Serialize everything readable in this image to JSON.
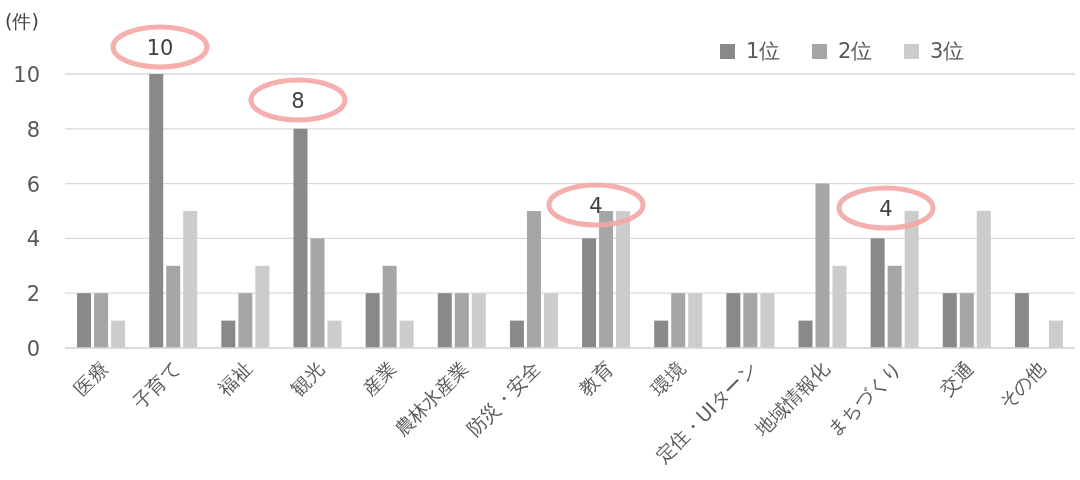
{
  "chart_data": {
    "type": "bar",
    "ylabel": "(件)",
    "categories": [
      "医療",
      "子育て",
      "福祉",
      "観光",
      "産業",
      "農林水産業",
      "防災・安全",
      "教育",
      "環境",
      "定住・UIターン",
      "地域情報化",
      "まちづくり",
      "交通",
      "その他"
    ],
    "series": [
      {
        "name": "1位",
        "color": "#898989",
        "values": [
          2,
          10,
          1,
          8,
          2,
          2,
          1,
          4,
          1,
          2,
          1,
          4,
          2,
          2
        ]
      },
      {
        "name": "2位",
        "color": "#a6a6a6",
        "values": [
          2,
          3,
          2,
          4,
          3,
          2,
          5,
          5,
          2,
          2,
          6,
          3,
          2,
          0
        ]
      },
      {
        "name": "3位",
        "color": "#cccccc",
        "values": [
          1,
          5,
          3,
          1,
          1,
          2,
          2,
          5,
          2,
          2,
          3,
          5,
          5,
          1
        ]
      }
    ],
    "ylim": [
      0,
      10
    ],
    "yticks": [
      0,
      2,
      4,
      6,
      8,
      10
    ],
    "grid": "y",
    "legend": "top right",
    "annotations": [
      "10",
      "8",
      "4",
      "4"
    ]
  }
}
